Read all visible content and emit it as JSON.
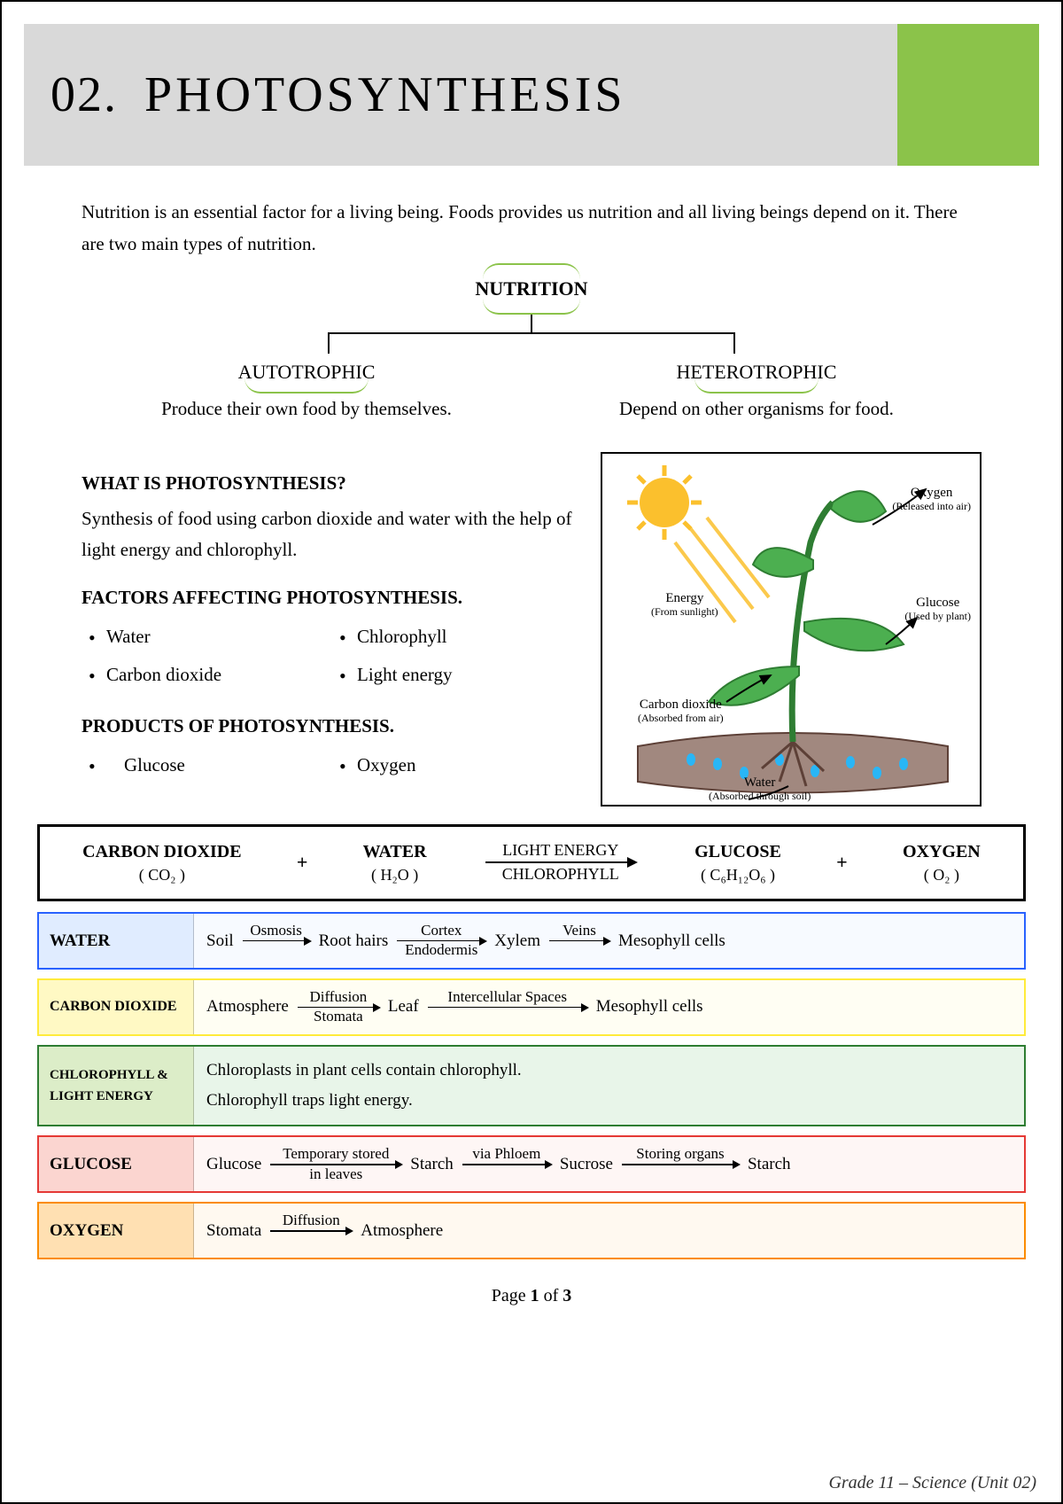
{
  "header": {
    "number": "02.",
    "title": "PHOTOSYNTHESIS",
    "left_bg": "#d9d9d9",
    "right_bg": "#8bc34a"
  },
  "intro": "Nutrition is an essential factor for a living being. Foods provides us nutrition and all living beings depend on it. There are two main types of nutrition.",
  "tree": {
    "root": "NUTRITION",
    "left": {
      "title": "AUTOTROPHIC",
      "desc": "Produce their own food by themselves."
    },
    "right": {
      "title": "HETEROTROPHIC",
      "desc": "Depend on other organisms for food."
    },
    "arc_color": "#8bc34a"
  },
  "sections": {
    "what": {
      "heading": "WHAT IS PHOTOSYNTHESIS?",
      "body": "Synthesis of food using carbon dioxide and water with the help of light energy and chlorophyll."
    },
    "factors": {
      "heading": "FACTORS AFFECTING PHOTOSYNTHESIS.",
      "items": [
        "Water",
        "Chlorophyll",
        "Carbon dioxide",
        "Light energy"
      ]
    },
    "products": {
      "heading": "PRODUCTS OF PHOTOSYNTHESIS.",
      "items": [
        "Glucose",
        "Oxygen"
      ]
    }
  },
  "figure": {
    "oxygen": {
      "label": "Oxygen",
      "sub": "(Released into air)"
    },
    "energy": {
      "label": "Energy",
      "sub": "(From sunlight)"
    },
    "glucose": {
      "label": "Glucose",
      "sub": "(Used by plant)"
    },
    "co2": {
      "label": "Carbon dioxide",
      "sub": "(Absorbed from air)"
    },
    "water": {
      "label": "Water",
      "sub": "(Absorbed through soil)"
    },
    "colors": {
      "sun": "#fbc02d",
      "leaf": "#4caf50",
      "stem": "#2e7d32",
      "soil": "#8d6e63",
      "water_drop": "#29b6f6"
    }
  },
  "equation": {
    "reactants": [
      {
        "name": "CARBON DIOXIDE",
        "formula": "( CO₂ )"
      },
      {
        "name": "WATER",
        "formula": "( H₂O )"
      }
    ],
    "arrow": {
      "top": "LIGHT ENERGY",
      "bottom": "CHLOROPHYLL"
    },
    "products": [
      {
        "name": "GLUCOSE",
        "formula": "( C₆H₁₂O₆ )"
      },
      {
        "name": "OXYGEN",
        "formula": "( O₂ )"
      }
    ]
  },
  "paths": {
    "water": {
      "label": "WATER",
      "border": "#2962ff",
      "bg": "#eef4ff",
      "flow": [
        {
          "node": "Soil"
        },
        {
          "arrow": {
            "top": "Osmosis",
            "bottom": ""
          }
        },
        {
          "node": "Root hairs"
        },
        {
          "arrow": {
            "top": "Cortex",
            "bottom": "Endodermis"
          }
        },
        {
          "node": "Xylem"
        },
        {
          "arrow": {
            "top": "Veins",
            "bottom": ""
          }
        },
        {
          "node": "Mesophyll cells"
        }
      ]
    },
    "co2": {
      "label": "CARBON DIOXIDE",
      "border": "#ffeb3b",
      "bg": "#fffde7",
      "flow": [
        {
          "node": "Atmosphere"
        },
        {
          "arrow": {
            "top": "Diffusion",
            "bottom": "Stomata"
          }
        },
        {
          "node": "Leaf"
        },
        {
          "arrow": {
            "top": "Intercellular Spaces",
            "bottom": ""
          }
        },
        {
          "node": "Mesophyll cells"
        }
      ]
    },
    "chlorophyll": {
      "label": "CHLOROPHYLL & LIGHT ENERGY",
      "border": "#2e7d32",
      "bg": "#e8f5e9",
      "text": "Chloroplasts in plant cells contain chlorophyll.\nChlorophyll traps light energy."
    },
    "glucose": {
      "label": "GLUCOSE",
      "border": "#e53935",
      "bg": "#fdecea",
      "flow": [
        {
          "node": "Glucose"
        },
        {
          "arrow": {
            "top": "Temporary stored",
            "bottom": "in leaves"
          }
        },
        {
          "node": "Starch"
        },
        {
          "arrow": {
            "top": "via Phloem",
            "bottom": ""
          }
        },
        {
          "node": "Sucrose"
        },
        {
          "arrow": {
            "top": "Storing organs",
            "bottom": ""
          }
        },
        {
          "node": "Starch"
        }
      ]
    },
    "oxygen": {
      "label": "OXYGEN",
      "border": "#fb8c00",
      "bg": "#fff3e0",
      "flow": [
        {
          "node": "Stomata"
        },
        {
          "arrow": {
            "top": "Diffusion",
            "bottom": ""
          }
        },
        {
          "node": "Atmosphere"
        }
      ]
    }
  },
  "footer": {
    "page_label": "Page ",
    "page_num": "1",
    "page_of": " of ",
    "page_total": "3"
  },
  "doc_footer": "Grade 11 – Science (Unit 02)"
}
